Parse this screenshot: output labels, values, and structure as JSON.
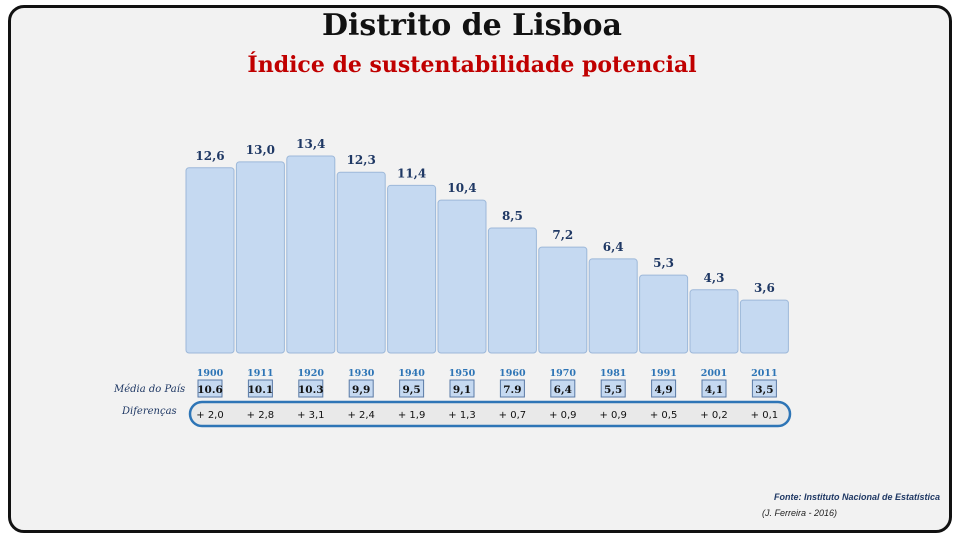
{
  "title": "Distrito de Lisboa",
  "subtitle": "Índice de sustentabilidade potencial",
  "row_labels": {
    "media": "Média do País",
    "diferencas": "Diferenças"
  },
  "source": "Fonte: Instituto Nacional de Estatística",
  "author": "(J. Ferreira - 2016)",
  "chart_data": {
    "type": "bar",
    "title": "Índice de sustentabilidade potencial",
    "categories": [
      "1900",
      "1911",
      "1920",
      "1930",
      "1940",
      "1950",
      "1960",
      "1970",
      "1981",
      "1991",
      "2001",
      "2011"
    ],
    "series": [
      {
        "name": "Distrito de Lisboa",
        "values": [
          12.6,
          13.0,
          13.4,
          12.3,
          11.4,
          10.4,
          8.5,
          7.2,
          6.4,
          5.3,
          4.3,
          3.6
        ],
        "labels": [
          "12,6",
          "13,0",
          "13,4",
          "12,3",
          "11,4",
          "10,4",
          "8,5",
          "7,2",
          "6,4",
          "5,3",
          "4,3",
          "3,6"
        ]
      },
      {
        "name": "Média do País",
        "values": [
          10.6,
          10.1,
          10.3,
          9.9,
          9.5,
          9.1,
          7.9,
          6.4,
          5.5,
          4.9,
          4.1,
          3.5
        ],
        "labels": [
          "10.6",
          "10.1",
          "10.3",
          "9,9",
          "9,5",
          "9,1",
          "7.9",
          "6,4",
          "5,5",
          "4,9",
          "4,1",
          "3,5"
        ]
      }
    ],
    "differences": [
      "+ 2,0",
      "+ 2,8",
      "+ 3,1",
      "+ 2,4",
      "+ 1,9",
      "+ 1,3",
      "+ 0,7",
      "+ 0,9",
      "+ 0,9",
      "+ 0,5",
      "+ 0,2",
      "+ 0,1"
    ],
    "colors": {
      "bar": "#c5d9f1",
      "bar_border": "#9db8d9",
      "value_label": "#1f3864",
      "year": "#2e75b6",
      "diff_outline": "#2e75b6"
    }
  }
}
